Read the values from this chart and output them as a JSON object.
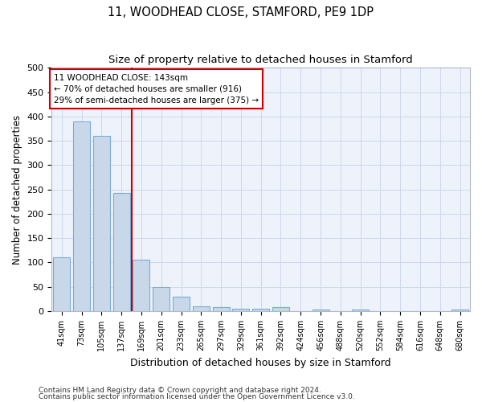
{
  "title1": "11, WOODHEAD CLOSE, STAMFORD, PE9 1DP",
  "title2": "Size of property relative to detached houses in Stamford",
  "xlabel": "Distribution of detached houses by size in Stamford",
  "ylabel": "Number of detached properties",
  "footer1": "Contains HM Land Registry data © Crown copyright and database right 2024.",
  "footer2": "Contains public sector information licensed under the Open Government Licence v3.0.",
  "bin_labels": [
    "41sqm",
    "73sqm",
    "105sqm",
    "137sqm",
    "169sqm",
    "201sqm",
    "233sqm",
    "265sqm",
    "297sqm",
    "329sqm",
    "361sqm",
    "392sqm",
    "424sqm",
    "456sqm",
    "488sqm",
    "520sqm",
    "552sqm",
    "584sqm",
    "616sqm",
    "648sqm",
    "680sqm"
  ],
  "bar_values": [
    110,
    390,
    360,
    243,
    105,
    50,
    30,
    10,
    8,
    5,
    5,
    8,
    0,
    3,
    0,
    3,
    0,
    0,
    0,
    0,
    3
  ],
  "bar_color": "#c8d8e8",
  "bar_edge_color": "#7aabd8",
  "property_label": "11 WOODHEAD CLOSE: 143sqm",
  "annotation_line1": "← 70% of detached houses are smaller (916)",
  "annotation_line2": "29% of semi-detached houses are larger (375) →",
  "vline_color": "#cc0000",
  "vline_x": 3.5,
  "ylim": [
    0,
    500
  ],
  "yticks": [
    0,
    50,
    100,
    150,
    200,
    250,
    300,
    350,
    400,
    450,
    500
  ],
  "grid_color": "#ccd8ec",
  "bg_color": "#eef2fa",
  "ann_box_facecolor": "white",
  "ann_box_edgecolor": "#cc0000"
}
